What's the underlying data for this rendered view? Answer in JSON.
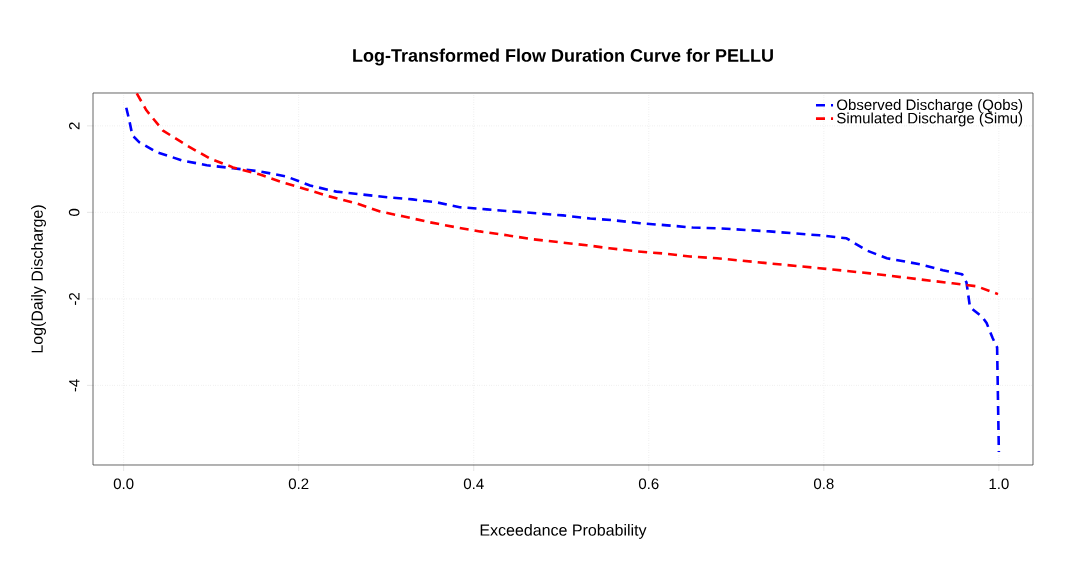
{
  "chart_data": {
    "type": "line",
    "title": "Log-Transformed Flow Duration Curve for PELLU",
    "xlabel": "Exceedance Probability",
    "ylabel": "Log(Daily Discharge)",
    "xlim": [
      -0.035,
      1.039
    ],
    "ylim": [
      -5.84,
      2.76
    ],
    "xticks": [
      {
        "value": 0,
        "label": "0.0"
      },
      0.2,
      0.4,
      0.6,
      0.8,
      {
        "value": 1,
        "label": "1.0"
      }
    ],
    "yticks": [
      -4,
      -2,
      0,
      2
    ],
    "grid": true,
    "legend": "top right",
    "line_style": "dashed",
    "series": [
      {
        "name": "Observed Discharge (Qobs)",
        "color": "#0000ff",
        "x": [
          0.003,
          0.006,
          0.01,
          0.018,
          0.038,
          0.067,
          0.095,
          0.125,
          0.155,
          0.186,
          0.213,
          0.243,
          0.27,
          0.301,
          0.33,
          0.358,
          0.384,
          0.415,
          0.445,
          0.472,
          0.502,
          0.533,
          0.559,
          0.59,
          0.621,
          0.65,
          0.681,
          0.738,
          0.795,
          0.826,
          0.849,
          0.872,
          0.91,
          0.936,
          0.958,
          0.963,
          0.967,
          0.981,
          0.986,
          0.993,
          0.998,
          0.9985,
          0.999,
          1.0
        ],
        "values": [
          2.42,
          2.17,
          1.78,
          1.62,
          1.39,
          1.2,
          1.09,
          1.02,
          0.95,
          0.83,
          0.62,
          0.48,
          0.42,
          0.35,
          0.3,
          0.23,
          0.12,
          0.07,
          0.02,
          -0.02,
          -0.07,
          -0.14,
          -0.18,
          -0.25,
          -0.3,
          -0.35,
          -0.37,
          -0.44,
          -0.53,
          -0.6,
          -0.88,
          -1.06,
          -1.2,
          -1.34,
          -1.43,
          -1.62,
          -2.19,
          -2.42,
          -2.56,
          -2.91,
          -3.12,
          -3.72,
          -4.34,
          -5.54
        ]
      },
      {
        "name": "Simulated Discharge (Simu)",
        "color": "#ff0000",
        "x": [
          0.015,
          0.026,
          0.045,
          0.072,
          0.098,
          0.125,
          0.155,
          0.182,
          0.209,
          0.235,
          0.266,
          0.293,
          0.319,
          0.35,
          0.381,
          0.407,
          0.438,
          0.467,
          0.498,
          0.529,
          0.555,
          0.586,
          0.616,
          0.647,
          0.678,
          0.738,
          0.795,
          0.853,
          0.91,
          0.947,
          0.975,
          0.999
        ],
        "values": [
          2.75,
          2.36,
          1.89,
          1.55,
          1.25,
          1.04,
          0.88,
          0.69,
          0.53,
          0.37,
          0.21,
          0.02,
          -0.09,
          -0.23,
          -0.35,
          -0.44,
          -0.53,
          -0.62,
          -0.69,
          -0.76,
          -0.83,
          -0.9,
          -0.95,
          -1.02,
          -1.06,
          -1.18,
          -1.29,
          -1.41,
          -1.55,
          -1.64,
          -1.71,
          -1.89
        ]
      }
    ]
  }
}
